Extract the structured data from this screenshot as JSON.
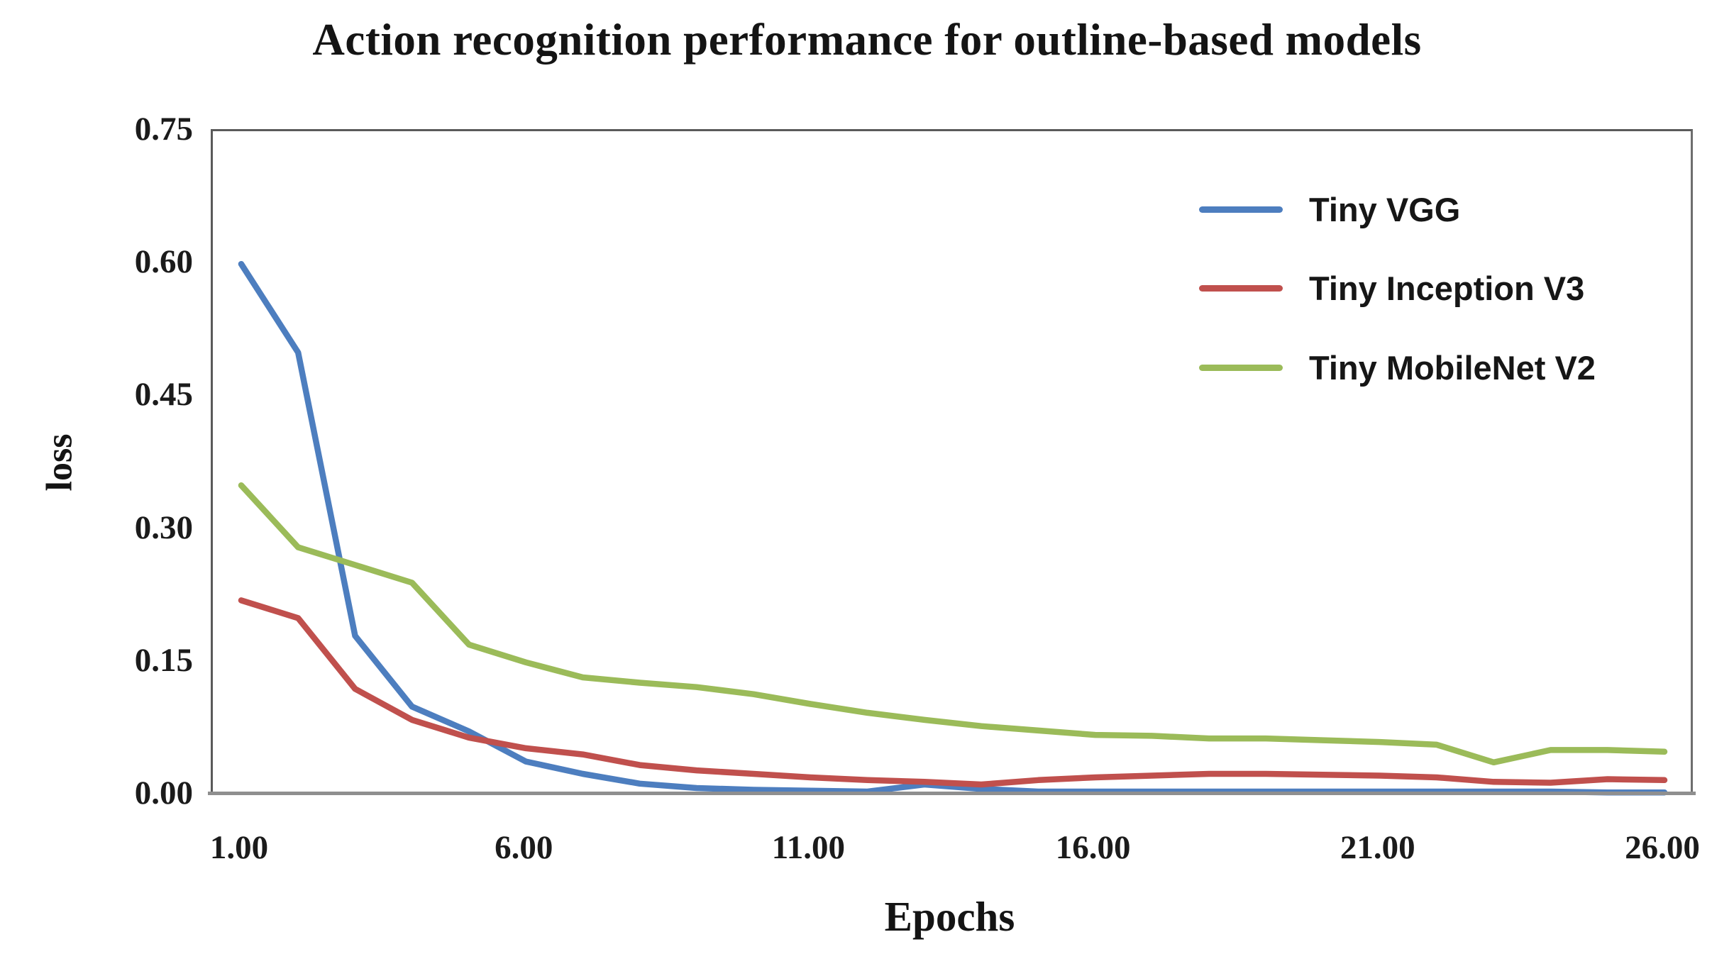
{
  "title": "Action recognition performance for outline-based models",
  "y_axis": {
    "title": "loss",
    "ticks": [
      "0.75",
      "0.60",
      "0.45",
      "0.30",
      "0.15",
      "0.00"
    ]
  },
  "x_axis": {
    "title": "Epochs",
    "ticks": [
      "1.00",
      "6.00",
      "11.00",
      "16.00",
      "21.00",
      "26.00"
    ]
  },
  "legend": [
    {
      "label": "Tiny VGG",
      "color": "#4D7EBF"
    },
    {
      "label": "Tiny Inception V3",
      "color": "#C0504D"
    },
    {
      "label": "Tiny MobileNet V2",
      "color": "#9BBB59"
    }
  ],
  "colors": {
    "frame": "#5a5a5a",
    "axis_line": "#8f8f8f",
    "text": "#141414"
  },
  "chart_data": {
    "type": "line",
    "title": "Action recognition performance for outline-based models",
    "xlabel": "Epochs",
    "ylabel": "loss",
    "xlim": [
      1,
      26
    ],
    "ylim": [
      0,
      0.75
    ],
    "grid": false,
    "legend_position": "inside-top-right",
    "x": [
      1,
      2,
      3,
      4,
      5,
      6,
      7,
      8,
      9,
      10,
      11,
      12,
      13,
      14,
      15,
      16,
      17,
      18,
      19,
      20,
      21,
      22,
      23,
      24,
      25,
      26
    ],
    "series": [
      {
        "name": "Tiny VGG",
        "color": "#4D7EBF",
        "values": [
          0.6,
          0.5,
          0.18,
          0.1,
          0.072,
          0.038,
          0.024,
          0.013,
          0.008,
          0.006,
          0.005,
          0.004,
          0.012,
          0.007,
          0.004,
          0.004,
          0.004,
          0.004,
          0.004,
          0.004,
          0.004,
          0.004,
          0.004,
          0.004,
          0.003,
          0.003
        ]
      },
      {
        "name": "Tiny Inception V3",
        "color": "#C0504D",
        "values": [
          0.22,
          0.2,
          0.12,
          0.085,
          0.065,
          0.053,
          0.046,
          0.034,
          0.028,
          0.024,
          0.02,
          0.017,
          0.015,
          0.012,
          0.017,
          0.02,
          0.022,
          0.024,
          0.024,
          0.023,
          0.022,
          0.02,
          0.015,
          0.014,
          0.018,
          0.017
        ]
      },
      {
        "name": "Tiny MobileNet V2",
        "color": "#9BBB59",
        "values": [
          0.35,
          0.28,
          0.26,
          0.24,
          0.17,
          0.15,
          0.133,
          0.127,
          0.122,
          0.114,
          0.103,
          0.093,
          0.085,
          0.078,
          0.073,
          0.068,
          0.067,
          0.064,
          0.064,
          0.062,
          0.06,
          0.057,
          0.037,
          0.051,
          0.051,
          0.049
        ]
      }
    ]
  }
}
